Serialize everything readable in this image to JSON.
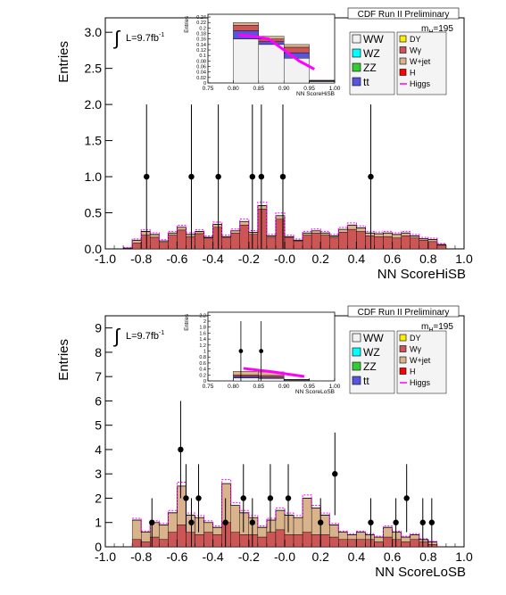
{
  "chart_data": [
    {
      "type": "bar",
      "stacked": true,
      "experiment": "CDF Run II Preliminary",
      "xlabel": "NN ScoreHiSB",
      "ylabel": "Entries",
      "luminosity": "L=9.7fb",
      "luminosity_sup": "-1",
      "mass_label": "m",
      "mass_sub": "H",
      "mass_value": "=195",
      "xlim": [
        -1.0,
        1.0
      ],
      "ylim": [
        0,
        3.2
      ],
      "xticks": [
        "-1.0",
        "-0.8",
        "-0.6",
        "-0.4",
        "-0.2",
        "-0.0",
        "0.2",
        "0.4",
        "0.6",
        "0.8",
        "1.0"
      ],
      "yticks": [
        "0.0",
        "0.5",
        "1.0",
        "1.5",
        "2.0",
        "2.5",
        "3.0"
      ],
      "bin_start": -0.9,
      "bin_width": 0.05,
      "background_total": [
        0.01,
        0.12,
        0.24,
        0.2,
        0.11,
        0.22,
        0.3,
        0.2,
        0.24,
        0.16,
        0.34,
        0.17,
        0.25,
        0.38,
        0.23,
        0.6,
        0.18,
        0.46,
        0.17,
        0.12,
        0.22,
        0.25,
        0.22,
        0.18,
        0.27,
        0.33,
        0.29,
        0.22,
        0.21,
        0.22,
        0.2,
        0.22,
        0.18,
        0.14,
        0.13,
        0.06
      ],
      "background_inner": [
        0.01,
        0.08,
        0.19,
        0.16,
        0.09,
        0.19,
        0.26,
        0.17,
        0.21,
        0.15,
        0.3,
        0.16,
        0.22,
        0.33,
        0.2,
        0.55,
        0.16,
        0.41,
        0.16,
        0.11,
        0.19,
        0.22,
        0.19,
        0.16,
        0.23,
        0.27,
        0.24,
        0.18,
        0.17,
        0.17,
        0.15,
        0.18,
        0.15,
        0.12,
        0.1,
        0.05
      ],
      "data_points": [
        {
          "x": -0.77,
          "y": 1,
          "err": 1
        },
        {
          "x": -0.52,
          "y": 1,
          "err": 1
        },
        {
          "x": -0.37,
          "y": 1,
          "err": 1
        },
        {
          "x": -0.18,
          "y": 1,
          "err": 1
        },
        {
          "x": -0.13,
          "y": 1,
          "err": 1
        },
        {
          "x": -0.01,
          "y": 1,
          "err": 1
        },
        {
          "x": 0.48,
          "y": 1,
          "err": 1
        }
      ],
      "legend_left": [
        {
          "label": "WW",
          "color": "#f2f2f2"
        },
        {
          "label": "WZ",
          "color": "#00ffff"
        },
        {
          "label": "ZZ",
          "color": "#33cc33"
        },
        {
          "label": "tt",
          "color": "#5555dd"
        }
      ],
      "legend_right": [
        {
          "label": "DY",
          "color": "#ffee00"
        },
        {
          "label": "Wγ",
          "color": "#cc5555"
        },
        {
          "label": "W+jet",
          "color": "#d9b38c"
        },
        {
          "label": "H",
          "color": "#ff0000"
        },
        {
          "label": "Higgs",
          "color": "#ff00ff"
        }
      ],
      "inset": {
        "xlabel": "NN ScoreHiSB",
        "ylabel": "Entries",
        "xlim": [
          0.75,
          1.0
        ],
        "ylim": [
          0,
          0.25
        ],
        "xticks": [
          "0.75",
          "0.80",
          "0.85",
          "0.90",
          "0.95",
          "1.00"
        ],
        "yticks": [
          "0",
          "0.02",
          "0.04",
          "0.06",
          "0.08",
          "0.1",
          "0.12",
          "0.14",
          "0.16",
          "0.18",
          "0.2",
          "0.22",
          "0.24"
        ],
        "bins": [
          {
            "x0": 0.8,
            "x1": 0.85,
            "total": 0.22,
            "layers": [
              0.16,
              0.19,
              0.21
            ]
          },
          {
            "x0": 0.85,
            "x1": 0.9,
            "total": 0.17,
            "layers": [
              0.14,
              0.15,
              0.16
            ]
          },
          {
            "x0": 0.9,
            "x1": 0.95,
            "total": 0.14,
            "layers": [
              0.09,
              0.11,
              0.13
            ]
          },
          {
            "x0": 0.95,
            "x1": 1.0,
            "total": 0.01,
            "layers": [
              0.005,
              0.007,
              0.009
            ]
          }
        ],
        "signal_x": [
          0.81,
          0.84,
          0.87,
          0.9,
          0.93,
          0.96
        ],
        "signal_y": [
          0.175,
          0.17,
          0.16,
          0.12,
          0.08,
          0.05
        ],
        "data_points": []
      }
    },
    {
      "type": "bar",
      "stacked": true,
      "experiment": "CDF Run II Preliminary",
      "xlabel": "NN ScoreLoSB",
      "ylabel": "Entries",
      "luminosity": "L=9.7fb",
      "luminosity_sup": "-1",
      "mass_label": "m",
      "mass_sub": "H",
      "mass_value": "=195",
      "xlim": [
        -1.0,
        1.0
      ],
      "ylim": [
        0,
        9.5
      ],
      "xticks": [
        "-1.0",
        "-0.8",
        "-0.6",
        "-0.4",
        "-0.2",
        "-0.0",
        "0.2",
        "0.4",
        "0.6",
        "0.8",
        "1.0"
      ],
      "yticks": [
        "0",
        "1",
        "2",
        "3",
        "4",
        "5",
        "6",
        "7",
        "8",
        "9"
      ],
      "bin_start": -0.85,
      "bin_width": 0.05,
      "background_total": [
        1.1,
        0.6,
        1.0,
        0.9,
        1.4,
        2.5,
        1.3,
        1.2,
        1.0,
        0.8,
        2.6,
        1.7,
        1.4,
        1.2,
        0.8,
        1.1,
        1.5,
        1.3,
        1.2,
        2.0,
        1.6,
        1.3,
        0.9,
        0.6,
        0.5,
        0.6,
        0.5,
        0.4,
        0.8,
        0.6,
        0.4,
        0.5,
        0.3,
        0.2
      ],
      "background_inner": [
        0.3,
        0.2,
        0.4,
        0.3,
        0.6,
        0.9,
        0.6,
        0.5,
        0.6,
        0.5,
        1.0,
        0.6,
        0.5,
        0.5,
        0.4,
        0.6,
        0.7,
        0.5,
        0.5,
        0.6,
        0.5,
        0.5,
        0.4,
        0.3,
        0.3,
        0.3,
        0.3,
        0.2,
        0.4,
        0.3,
        0.2,
        0.3,
        0.2,
        0.1
      ],
      "data_points": [
        {
          "x": -0.74,
          "y": 1,
          "err": 1
        },
        {
          "x": -0.58,
          "y": 4,
          "err": 2
        },
        {
          "x": -0.55,
          "y": 2,
          "err": 1.4
        },
        {
          "x": -0.52,
          "y": 1,
          "err": 1
        },
        {
          "x": -0.48,
          "y": 2,
          "err": 1.4
        },
        {
          "x": -0.33,
          "y": 1,
          "err": 1
        },
        {
          "x": -0.23,
          "y": 2,
          "err": 1.4
        },
        {
          "x": -0.18,
          "y": 1,
          "err": 1
        },
        {
          "x": -0.08,
          "y": 2,
          "err": 1.4
        },
        {
          "x": 0.02,
          "y": 2,
          "err": 1.4
        },
        {
          "x": 0.2,
          "y": 1,
          "err": 1
        },
        {
          "x": 0.28,
          "y": 3,
          "err": 1.7
        },
        {
          "x": 0.48,
          "y": 1,
          "err": 1
        },
        {
          "x": 0.62,
          "y": 1,
          "err": 1
        },
        {
          "x": 0.68,
          "y": 2,
          "err": 1.4
        },
        {
          "x": 0.77,
          "y": 1,
          "err": 1
        },
        {
          "x": 0.82,
          "y": 1,
          "err": 1
        }
      ],
      "legend_left": [
        {
          "label": "WW",
          "color": "#f2f2f2"
        },
        {
          "label": "WZ",
          "color": "#00ffff"
        },
        {
          "label": "ZZ",
          "color": "#33cc33"
        },
        {
          "label": "tt",
          "color": "#5555dd"
        }
      ],
      "legend_right": [
        {
          "label": "DY",
          "color": "#ffee00"
        },
        {
          "label": "Wγ",
          "color": "#cc5555"
        },
        {
          "label": "W+jet",
          "color": "#d9b38c"
        },
        {
          "label": "H",
          "color": "#ff0000"
        },
        {
          "label": "Higgs",
          "color": "#ff00ff"
        }
      ],
      "inset": {
        "xlabel": "NN ScoreLoSB",
        "ylabel": "Entries",
        "xlim": [
          0.75,
          1.0
        ],
        "ylim": [
          0,
          2.3
        ],
        "xticks": [
          "0.75",
          "0.80",
          "0.85",
          "0.90",
          "0.95",
          "1.00"
        ],
        "yticks": [
          "0",
          "0.2",
          "0.4",
          "0.6",
          "0.8",
          "1",
          "1.2",
          "1.4",
          "1.6",
          "1.8",
          "2",
          "2.2"
        ],
        "bins": [
          {
            "x0": 0.8,
            "x1": 0.85,
            "total": 0.32,
            "layers": [
              0.1,
              0.15,
              0.2
            ]
          },
          {
            "x0": 0.85,
            "x1": 0.9,
            "total": 0.3,
            "layers": [
              0.08,
              0.12,
              0.18
            ]
          },
          {
            "x0": 0.9,
            "x1": 0.95,
            "total": 0.05,
            "layers": [
              0.02,
              0.03,
              0.04
            ]
          }
        ],
        "signal_x": [
          0.82,
          0.85,
          0.88,
          0.91,
          0.94
        ],
        "signal_y": [
          0.42,
          0.36,
          0.3,
          0.22,
          0.15
        ],
        "data_points": [
          {
            "x": 0.815,
            "y": 1,
            "err": 1
          },
          {
            "x": 0.855,
            "y": 1,
            "err": 1
          }
        ]
      }
    }
  ]
}
